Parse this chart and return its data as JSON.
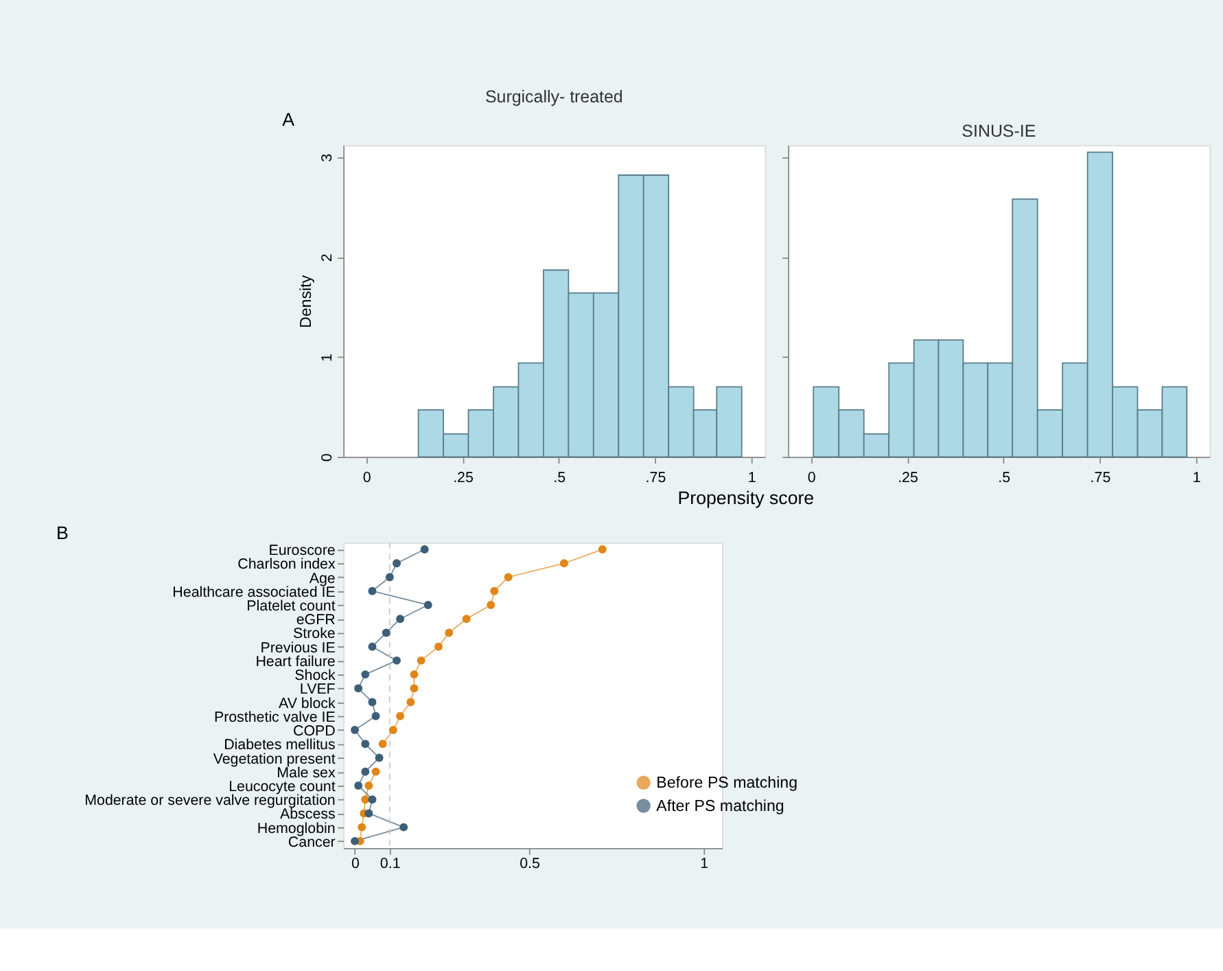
{
  "chart_data": [
    {
      "type": "histogram",
      "title": "Surgically- treated",
      "ylabel": "Density",
      "xlabel": "Propensity score",
      "annotations": [
        "A"
      ],
      "bins": [
        0.135,
        0.2,
        0.265,
        0.33,
        0.395,
        0.46,
        0.525,
        0.59,
        0.655,
        0.72,
        0.785,
        0.85,
        0.91,
        0.975
      ],
      "values": [
        0.47,
        0.23,
        0.47,
        0.7,
        0.94,
        1.87,
        1.64,
        1.64,
        2.82,
        2.82,
        0.7,
        0.47,
        0.7
      ],
      "color": "#add8e6",
      "xlim": [
        -0.06,
        1.035
      ],
      "xticks": [
        0,
        {
          "value": 0.25,
          "label": ".25"
        },
        {
          "value": 0.5,
          "label": ".5"
        },
        {
          "value": 0.75,
          "label": ".75"
        },
        1
      ],
      "ylim": [
        0,
        3.12
      ],
      "yticks": [
        0,
        1,
        2,
        3
      ],
      "grid": false
    },
    {
      "type": "histogram",
      "title": "SINUS-IE",
      "tick_labels": "x",
      "bins": [
        0.006,
        0.072,
        0.137,
        0.202,
        0.267,
        0.331,
        0.395,
        0.459,
        0.523,
        0.588,
        0.653,
        0.718,
        0.783,
        0.848,
        0.912,
        0.976
      ],
      "values": [
        0.7,
        0.47,
        0.23,
        0.94,
        1.17,
        1.17,
        0.94,
        0.94,
        2.58,
        0.47,
        0.94,
        3.05,
        0.7,
        0.47,
        0.7
      ],
      "color": "#add8e6",
      "xlim": [
        -0.06,
        1.035
      ],
      "xticks": [
        0,
        {
          "value": 0.25,
          "label": ".25"
        },
        {
          "value": 0.5,
          "label": ".5"
        },
        {
          "value": 0.75,
          "label": ".75"
        },
        1
      ],
      "ylim": [
        0,
        3.12
      ],
      "yticks": [
        0,
        1,
        2,
        3
      ],
      "grid": false
    },
    {
      "type": "line",
      "orientation": "horizontal",
      "marker": "circle",
      "line_style": "solid",
      "legend": "bottom right",
      "grid": false,
      "annotations": [
        "B"
      ],
      "categories": [
        "Euroscore",
        "Charlson index",
        "Age",
        "Healthcare associated IE",
        "Platelet count",
        "eGFR",
        "Stroke",
        "Previous IE",
        "Heart failure",
        "Shock",
        "LVEF",
        "AV block",
        "Prosthetic valve IE",
        "COPD",
        "Diabetes mellitus",
        "Vegetation present",
        "Male sex",
        "Leucocyte count",
        "Moderate or severe valve regurgitation",
        "Abscess",
        "Hemoglobin",
        "Cancer"
      ],
      "series": [
        {
          "name": "Before PS matching",
          "color": "#e0861a",
          "values": [
            0.71,
            0.6,
            0.44,
            0.4,
            0.39,
            0.32,
            0.27,
            0.24,
            0.19,
            0.17,
            0.17,
            0.16,
            0.13,
            0.11,
            0.08,
            null,
            0.06,
            0.04,
            0.03,
            0.026,
            0.02,
            0.015
          ]
        },
        {
          "name": "After PS matching",
          "color": "#3d5f78",
          "values": [
            0.2,
            0.12,
            0.1,
            0.05,
            0.21,
            0.13,
            0.09,
            0.05,
            0.12,
            0.03,
            0.01,
            0.05,
            0.06,
            0.0,
            0.03,
            0.07,
            0.03,
            0.01,
            0.05,
            0.04,
            0.14,
            0.0
          ]
        }
      ],
      "ref_lines": [
        {
          "axis": "x",
          "value": 0.1,
          "color": "#c8c8c8",
          "line_style": "dashed"
        }
      ],
      "xlim": [
        -0.033,
        1.053
      ],
      "xticks": [
        0,
        0.1,
        0.5,
        1
      ]
    }
  ]
}
